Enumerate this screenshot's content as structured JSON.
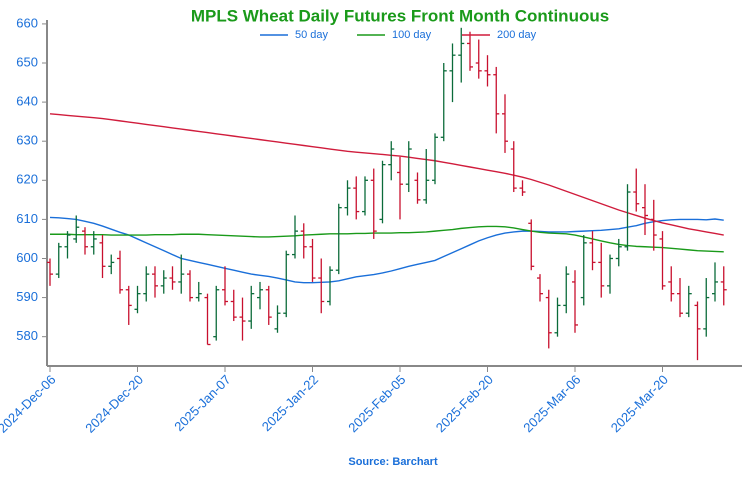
{
  "chart_data": {
    "type": "ohlc",
    "title": "MPLS Wheat Daily Futures Front Month Continuous",
    "source": "Source: Barchart",
    "categories": [
      "2024-Dec-06",
      null,
      null,
      null,
      null,
      null,
      null,
      null,
      null,
      null,
      "2024-Dec-20",
      null,
      null,
      null,
      null,
      null,
      null,
      null,
      null,
      null,
      "2025-Jan-07",
      null,
      null,
      null,
      null,
      null,
      null,
      null,
      null,
      null,
      "2025-Jan-22",
      null,
      null,
      null,
      null,
      null,
      null,
      null,
      null,
      null,
      "2025-Feb-05",
      null,
      null,
      null,
      null,
      null,
      null,
      null,
      null,
      null,
      "2025-Feb-20",
      null,
      null,
      null,
      null,
      null,
      null,
      null,
      null,
      null,
      "2025-Mar-06",
      null,
      null,
      null,
      null,
      null,
      null,
      null,
      null,
      null,
      "2025-Mar-20",
      null,
      null,
      null,
      null,
      null,
      null,
      null
    ],
    "open": [
      599,
      596,
      603,
      605,
      607,
      603,
      604,
      598,
      600,
      592,
      587,
      591,
      596,
      593,
      595,
      594,
      596,
      590,
      590,
      580,
      592,
      589,
      585,
      584,
      590,
      592,
      582,
      586,
      601,
      607,
      603,
      595,
      589,
      597,
      613,
      618,
      612,
      620,
      610,
      624,
      622,
      619,
      620,
      615,
      620,
      631,
      648,
      652,
      655,
      650,
      648,
      647,
      637,
      628,
      618,
      609,
      595,
      590,
      581,
      588,
      594,
      590,
      604,
      599,
      593,
      600,
      603,
      617,
      613,
      610,
      605,
      594,
      591,
      586,
      588,
      582,
      591,
      594
    ],
    "high": [
      600,
      604,
      607,
      611,
      608,
      607,
      606,
      601,
      602,
      593,
      593,
      598,
      598,
      597,
      598,
      601,
      597,
      594,
      591,
      593,
      598,
      592,
      590,
      593,
      594,
      593,
      588,
      602,
      611,
      609,
      605,
      600,
      598,
      614,
      620,
      621,
      621,
      623,
      625,
      630,
      626,
      630,
      622,
      628,
      632,
      650,
      655,
      659,
      658,
      656,
      652,
      649,
      642,
      630,
      620,
      610,
      596,
      592,
      590,
      598,
      597,
      606,
      607,
      604,
      601,
      605,
      619,
      623,
      619,
      615,
      607,
      598,
      595,
      593,
      589,
      595,
      599,
      598
    ],
    "low": [
      593,
      595,
      600,
      604,
      601,
      601,
      595,
      596,
      591,
      583,
      586,
      589,
      590,
      591,
      592,
      591,
      589,
      589,
      578,
      579,
      588,
      584,
      579,
      582,
      587,
      583,
      581,
      585,
      600,
      600,
      594,
      586,
      588,
      596,
      611,
      610,
      611,
      605,
      609,
      620,
      610,
      617,
      614,
      614,
      619,
      630,
      640,
      645,
      648,
      646,
      644,
      632,
      627,
      617,
      616,
      597,
      589,
      577,
      580,
      586,
      581,
      588,
      597,
      590,
      591,
      598,
      602,
      612,
      606,
      602,
      592,
      589,
      585,
      585,
      574,
      580,
      589,
      588
    ],
    "close": [
      596,
      603,
      606,
      608,
      603,
      605,
      598,
      599,
      592,
      588,
      591,
      596,
      593,
      595,
      594,
      596,
      590,
      591,
      578,
      592,
      589,
      585,
      584,
      591,
      592,
      585,
      586,
      601,
      607,
      603,
      595,
      589,
      597,
      613,
      618,
      612,
      620,
      607,
      624,
      628,
      619,
      628,
      615,
      620,
      631,
      648,
      652,
      655,
      649,
      648,
      647,
      637,
      630,
      618,
      617,
      598,
      591,
      581,
      588,
      596,
      583,
      604,
      599,
      593,
      600,
      603,
      617,
      614,
      611,
      606,
      593,
      591,
      586,
      591,
      582,
      590,
      594,
      592
    ],
    "up_color": "#0b6b3a",
    "down_color": "#c8102e",
    "series": [
      {
        "name": "50 day",
        "color": "#1a6fd9",
        "values": [
          610.5,
          610.4,
          610.2,
          610,
          609.5,
          609,
          608.3,
          607.5,
          606.7,
          606,
          605,
          604,
          603,
          602,
          601,
          600,
          599.5,
          599,
          598.5,
          598,
          597.5,
          597,
          596.5,
          596,
          595.7,
          595.4,
          595,
          594.5,
          594,
          593.8,
          593.8,
          593.9,
          594,
          594.3,
          594.8,
          595.3,
          595.6,
          595.9,
          596.3,
          596.8,
          597.4,
          598,
          598.5,
          599,
          599.5,
          600.5,
          601.5,
          602.5,
          603.5,
          604.5,
          605.3,
          606,
          606.5,
          606.8,
          607,
          607,
          606.9,
          606.8,
          606.8,
          606.8,
          606.9,
          607,
          607.1,
          607.2,
          607.4,
          607.6,
          608,
          608.4,
          609,
          609.4,
          609.7,
          609.9,
          610,
          610,
          610,
          609.9,
          610.1,
          609.8
        ]
      },
      {
        "name": "100 day",
        "color": "#1a9a1a",
        "values": [
          606.2,
          606.2,
          606.2,
          606.1,
          606.1,
          606.1,
          606.1,
          606,
          606,
          606,
          606,
          606,
          606.1,
          606.1,
          606.1,
          606.2,
          606.2,
          606.2,
          606.1,
          606,
          605.9,
          605.8,
          605.7,
          605.6,
          605.5,
          605.5,
          605.6,
          605.7,
          605.8,
          606,
          606.1,
          606.2,
          606.3,
          606.3,
          606.3,
          606.4,
          606.4,
          606.5,
          606.5,
          606.5,
          606.6,
          606.6,
          606.7,
          606.8,
          607,
          607.2,
          607.4,
          607.7,
          607.9,
          608.1,
          608.2,
          608.2,
          608.1,
          607.8,
          607.4,
          607,
          606.7,
          606.5,
          606.4,
          606.3,
          606,
          605.5,
          605,
          604.5,
          604,
          603.6,
          603.3,
          603.1,
          603,
          602.9,
          602.8,
          602.6,
          602.4,
          602.2,
          602,
          601.9,
          601.8,
          601.7
        ]
      },
      {
        "name": "200 day",
        "color": "#d01c3c",
        "values": [
          637,
          636.8,
          636.6,
          636.4,
          636.2,
          636,
          635.8,
          635.5,
          635.2,
          634.9,
          634.6,
          634.3,
          634,
          633.7,
          633.4,
          633.1,
          632.8,
          632.5,
          632.2,
          631.9,
          631.6,
          631.3,
          631,
          630.7,
          630.4,
          630.1,
          629.8,
          629.5,
          629.2,
          628.9,
          628.6,
          628.3,
          628,
          627.7,
          627.4,
          627.2,
          627,
          626.8,
          626.6,
          626.4,
          626.2,
          625.9,
          625.6,
          625.3,
          625,
          624.6,
          624.2,
          623.8,
          623.4,
          623,
          622.6,
          622.2,
          621.8,
          621.3,
          620.8,
          620.2,
          619.5,
          618.8,
          618,
          617.2,
          616.4,
          615.6,
          614.8,
          614,
          613.2,
          612.4,
          611.7,
          611,
          610.3,
          609.7,
          609.1,
          608.6,
          608.1,
          607.6,
          607.2,
          606.8,
          606.4,
          606
        ]
      }
    ],
    "ylim": [
      572.5,
      661
    ],
    "yticks": [
      580,
      590,
      600,
      610,
      620,
      630,
      640,
      650,
      660
    ],
    "title_color": "#1a9a1a",
    "label_color": "#1a6fd9"
  }
}
